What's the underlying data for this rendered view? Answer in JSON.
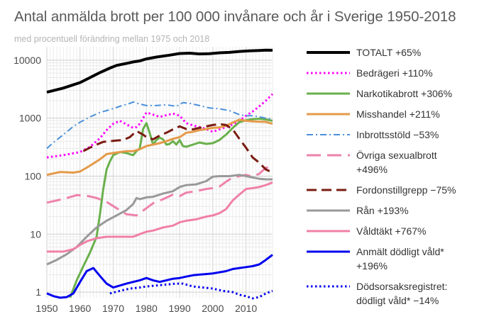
{
  "chart_data": {
    "type": "line",
    "title": "Antal anmälda brott per 100 000 invånare och år i Sverige 1950-2018",
    "subtitle": "med procentuell förändring mellan 1975 och 2018",
    "xlabel": "",
    "ylabel": "",
    "y_scale": "log",
    "xlim": [
      1950,
      2018
    ],
    "ylim": [
      0.8,
      17000
    ],
    "x_ticks": [
      1950,
      1960,
      1970,
      1980,
      1990,
      2000,
      2010
    ],
    "y_ticks": [
      1,
      10,
      100,
      1000,
      10000
    ],
    "grid": true,
    "legend_position": "right",
    "series": [
      {
        "name": "TOTALT +65%",
        "color": "#000000",
        "dash": "solid",
        "width": 4,
        "x": [
          1950,
          1955,
          1960,
          1963,
          1966,
          1969,
          1971,
          1974,
          1976,
          1978,
          1980,
          1983,
          1987,
          1990,
          1993,
          1996,
          1999,
          2002,
          2005,
          2008,
          2011,
          2014,
          2016,
          2018
        ],
        "y": [
          2800,
          3300,
          4100,
          5000,
          6100,
          7300,
          8100,
          8800,
          9300,
          9700,
          10500,
          11300,
          12200,
          13000,
          13200,
          12800,
          12900,
          13400,
          13600,
          14100,
          14500,
          14700,
          14900,
          14800
        ]
      },
      {
        "name": "Bedrägeri +110%",
        "color": "#ff00ff",
        "dash": "dot",
        "width": 3,
        "x": [
          1950,
          1955,
          1960,
          1963,
          1966,
          1968,
          1970,
          1972,
          1974,
          1976,
          1977,
          1978,
          1979,
          1980,
          1982,
          1984,
          1986,
          1988,
          1990,
          1992,
          1994,
          1996,
          1998,
          2000,
          2002,
          2004,
          2006,
          2008,
          2010,
          2012,
          2014,
          2016,
          2018
        ],
        "y": [
          210,
          230,
          260,
          320,
          450,
          620,
          800,
          900,
          780,
          680,
          700,
          800,
          1000,
          1250,
          1150,
          1050,
          1120,
          1200,
          1100,
          820,
          750,
          700,
          650,
          580,
          640,
          700,
          780,
          900,
          1100,
          1300,
          1600,
          2000,
          2600
        ]
      },
      {
        "name": "Narkotikabrott +306%",
        "color": "#6ab04c",
        "dash": "solid",
        "width": 3,
        "x": [
          1957,
          1959,
          1961,
          1963,
          1965,
          1966,
          1967,
          1968,
          1969,
          1970,
          1972,
          1974,
          1975,
          1976,
          1977,
          1978,
          1979,
          1980,
          1981,
          1982,
          1983,
          1984,
          1985,
          1986,
          1987,
          1988,
          1989,
          1990,
          1991,
          1992,
          1994,
          1996,
          1998,
          2000,
          2002,
          2004,
          2006,
          2008,
          2010,
          2012,
          2014,
          2016,
          2018
        ],
        "y": [
          0.8,
          1.6,
          2.8,
          4.8,
          9,
          22,
          60,
          130,
          180,
          230,
          260,
          250,
          240,
          230,
          270,
          300,
          650,
          820,
          550,
          350,
          420,
          460,
          430,
          350,
          360,
          400,
          350,
          420,
          330,
          320,
          350,
          380,
          360,
          370,
          420,
          520,
          680,
          850,
          920,
          960,
          980,
          950,
          900
        ]
      },
      {
        "name": "Misshandel +211%",
        "color": "#e49a4a",
        "dash": "solid",
        "width": 3,
        "x": [
          1950,
          1954,
          1958,
          1960,
          1962,
          1964,
          1966,
          1968,
          1970,
          1972,
          1974,
          1976,
          1978,
          1980,
          1982,
          1984,
          1986,
          1988,
          1990,
          1992,
          1994,
          1996,
          1998,
          2000,
          2002,
          2004,
          2006,
          2008,
          2010,
          2012,
          2014,
          2016,
          2018
        ],
        "y": [
          105,
          118,
          115,
          120,
          140,
          165,
          195,
          240,
          250,
          260,
          270,
          270,
          290,
          330,
          350,
          370,
          400,
          440,
          470,
          560,
          580,
          620,
          650,
          680,
          690,
          740,
          840,
          940,
          900,
          880,
          870,
          860,
          800
        ]
      },
      {
        "name": "Inbrottsstöld −53%",
        "color": "#4a90d9",
        "dash": "dashdot",
        "width": 2,
        "x": [
          1950,
          1952,
          1955,
          1958,
          1960,
          1963,
          1966,
          1969,
          1972,
          1975,
          1976,
          1978,
          1980,
          1983,
          1986,
          1989,
          1991,
          1993,
          1996,
          1999,
          2002,
          2005,
          2008,
          2010,
          2012,
          2014,
          2016,
          2018
        ],
        "y": [
          300,
          380,
          520,
          720,
          850,
          1050,
          1250,
          1400,
          1600,
          1800,
          1900,
          1750,
          1650,
          1650,
          1700,
          1600,
          1850,
          1800,
          1650,
          1500,
          1450,
          1350,
          1150,
          1100,
          1100,
          1050,
          1000,
          950
        ]
      },
      {
        "name": "Övriga sexualbrott +496%",
        "color": "#ee82ab",
        "dash": "longdash",
        "width": 3,
        "x": [
          1950,
          1953,
          1956,
          1959,
          1962,
          1965,
          1968,
          1971,
          1974,
          1977,
          1980,
          1982,
          1985,
          1988,
          1990,
          1992,
          1995,
          1998,
          2000,
          2002,
          2004,
          2006,
          2008,
          2010,
          2012,
          2014,
          2016,
          2018
        ],
        "y": [
          35,
          38,
          42,
          47,
          46,
          42,
          36,
          28,
          22,
          21,
          28,
          34,
          40,
          48,
          45,
          52,
          55,
          60,
          62,
          66,
          80,
          95,
          100,
          105,
          98,
          110,
          140,
          140
        ]
      },
      {
        "name": "Fordonstillgrepp −75%",
        "color": "#7a1c12",
        "dash": "dash",
        "width": 3,
        "x": [
          1961,
          1963,
          1965,
          1967,
          1969,
          1971,
          1973,
          1975,
          1977,
          1979,
          1980,
          1982,
          1984,
          1986,
          1988,
          1990,
          1992,
          1994,
          1996,
          1998,
          2000,
          2002,
          2004,
          2006,
          2008,
          2010,
          2012,
          2014,
          2016,
          2018
        ],
        "y": [
          270,
          310,
          350,
          390,
          400,
          410,
          420,
          470,
          600,
          520,
          470,
          430,
          500,
          560,
          640,
          720,
          650,
          640,
          680,
          720,
          760,
          790,
          760,
          640,
          440,
          310,
          210,
          170,
          130,
          115
        ]
      },
      {
        "name": "Rån +193%",
        "color": "#999999",
        "dash": "solid",
        "width": 3,
        "x": [
          1950,
          1953,
          1956,
          1959,
          1962,
          1965,
          1968,
          1971,
          1974,
          1976,
          1977,
          1978,
          1980,
          1982,
          1985,
          1988,
          1990,
          1992,
          1995,
          1998,
          2000,
          2002,
          2005,
          2008,
          2010,
          2012,
          2014,
          2016,
          2018
        ],
        "y": [
          3,
          3.6,
          4.5,
          6,
          9,
          13,
          17,
          21,
          26,
          33,
          42,
          40,
          43,
          44,
          50,
          55,
          65,
          70,
          72,
          82,
          98,
          100,
          100,
          105,
          100,
          95,
          90,
          88,
          88
        ]
      },
      {
        "name": "Våldtäkt +767%",
        "color": "#f080a8",
        "dash": "solid",
        "width": 3,
        "x": [
          1950,
          1955,
          1958,
          1960,
          1962,
          1965,
          1968,
          1970,
          1972,
          1974,
          1976,
          1978,
          1980,
          1982,
          1985,
          1988,
          1990,
          1992,
          1995,
          1998,
          2000,
          2002,
          2004,
          2006,
          2008,
          2010,
          2012,
          2014,
          2016,
          2018
        ],
        "y": [
          5,
          5,
          5.5,
          6.5,
          7.5,
          8.5,
          9,
          9,
          9,
          9,
          9,
          10,
          11,
          11.5,
          13,
          14,
          16,
          17,
          18,
          20,
          21,
          23,
          27,
          38,
          48,
          60,
          62,
          65,
          70,
          78
        ]
      },
      {
        "name": "Anmält dödligt våld* +196%",
        "color": "#0000ee",
        "dash": "solid",
        "width": 3,
        "x": [
          1950,
          1952,
          1954,
          1956,
          1958,
          1960,
          1962,
          1964,
          1966,
          1968,
          1970,
          1972,
          1974,
          1976,
          1978,
          1980,
          1982,
          1984,
          1986,
          1988,
          1990,
          1992,
          1994,
          1996,
          1998,
          2000,
          2002,
          2004,
          2006,
          2008,
          2010,
          2012,
          2014,
          2016,
          2018
        ],
        "y": [
          0.95,
          0.85,
          0.8,
          0.82,
          0.95,
          1.5,
          2.3,
          2.6,
          1.9,
          1.4,
          1.2,
          1.3,
          1.4,
          1.5,
          1.6,
          1.75,
          1.6,
          1.5,
          1.6,
          1.7,
          1.75,
          1.85,
          1.95,
          2.0,
          2.05,
          2.1,
          2.2,
          2.3,
          2.5,
          2.6,
          2.7,
          2.8,
          3.0,
          3.6,
          4.4
        ]
      },
      {
        "name": "Dödsorsaksregistret: dödligt våld* −14%",
        "color": "#0000ee",
        "dash": "dot",
        "width": 3,
        "x": [
          1969,
          1972,
          1975,
          1978,
          1980,
          1983,
          1986,
          1989,
          1991,
          1994,
          1997,
          2000,
          2003,
          2006,
          2008,
          2010,
          2012,
          2014,
          2016,
          2018
        ],
        "y": [
          0.95,
          1.05,
          1.15,
          1.2,
          1.25,
          1.3,
          1.35,
          1.4,
          1.4,
          1.25,
          1.2,
          1.15,
          1.05,
          1.0,
          0.9,
          0.85,
          0.78,
          0.82,
          0.95,
          1.05
        ]
      }
    ]
  },
  "legend": [
    {
      "lines": [
        "TOTALT +65%"
      ]
    },
    {
      "lines": [
        "Bedrägeri +110%"
      ]
    },
    {
      "lines": [
        "Narkotikabrott +306%"
      ]
    },
    {
      "lines": [
        "Misshandel +211%"
      ]
    },
    {
      "lines": [
        "Inbrottsstöld −53%"
      ]
    },
    {
      "lines": [
        "Övriga sexualbrott",
        "+496%"
      ]
    },
    {
      "lines": [
        "Fordonstillgrepp −75%"
      ]
    },
    {
      "lines": [
        "Rån +193%"
      ]
    },
    {
      "lines": [
        "Våldtäkt +767%"
      ]
    },
    {
      "lines": [
        "Anmält dödligt våld*",
        "+196%"
      ]
    },
    {
      "lines": [
        "Dödsorsaksregistret:",
        "dödligt våld* −14%"
      ]
    }
  ]
}
